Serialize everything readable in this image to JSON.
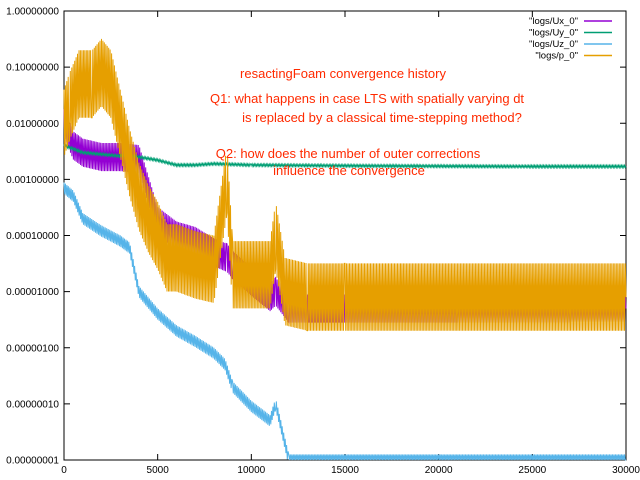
{
  "chart_data": {
    "type": "line",
    "title": "",
    "xlabel": "",
    "ylabel": "",
    "xlim": [
      0,
      30000
    ],
    "ylim": [
      1e-08,
      1
    ],
    "y_scale": "log",
    "grid": false,
    "legend_placement": "top-right",
    "x_ticks": [
      0,
      5000,
      10000,
      15000,
      20000,
      25000,
      30000
    ],
    "x_tick_labels": [
      "0",
      "5000",
      "10000",
      "15000",
      "20000",
      "25000",
      "30000"
    ],
    "y_ticks": [
      1e-08,
      1e-07,
      1e-06,
      1e-05,
      0.0001,
      0.001,
      0.01,
      0.1,
      1
    ],
    "y_tick_labels": [
      "0.00000001",
      "0.00000010",
      "0.00000100",
      "0.00001000",
      "0.00010000",
      "0.00100000",
      "0.01000000",
      "0.10000000",
      "1.00000000"
    ],
    "annotations": [
      "resactingFoam convergence history",
      "Q1: what happens in case LTS with spatially varying dt",
      "is replaced by a classical time-stepping method?",
      "Q2: how does the number of outer corrections",
      "influence the convergence"
    ],
    "series": [
      {
        "name": "\"logs/Ux_0\"",
        "color": "#9400d3",
        "x": [
          0,
          500,
          1000,
          2000,
          3000,
          4000,
          5000,
          6000,
          7000,
          8000,
          8700,
          9000,
          10000,
          11000,
          11300,
          12000,
          15000,
          20000,
          25000,
          30000
        ],
        "y": [
          0.01,
          0.004,
          0.003,
          0.0025,
          0.0025,
          0.0023,
          0.00018,
          0.0001,
          8e-05,
          5e-05,
          4e-05,
          3e-05,
          1.5e-05,
          8e-06,
          1e-05,
          5e-06,
          5e-06,
          5e-06,
          5e-06,
          5e-06
        ]
      },
      {
        "name": "\"logs/Uy_0\"",
        "color": "#009e73",
        "x": [
          0,
          500,
          1000,
          2000,
          3000,
          4000,
          5000,
          6000,
          7000,
          8000,
          10000,
          15000,
          20000,
          25000,
          30000
        ],
        "y": [
          0.004,
          0.0035,
          0.003,
          0.0028,
          0.0026,
          0.0025,
          0.0022,
          0.0018,
          0.0018,
          0.0019,
          0.0018,
          0.00175,
          0.00172,
          0.0017,
          0.0017
        ]
      },
      {
        "name": "\"logs/Uz_0\"",
        "color": "#56b4e9",
        "x": [
          0,
          500,
          1000,
          2000,
          3000,
          3500,
          4000,
          5000,
          6000,
          7000,
          8000,
          8600,
          9000,
          10000,
          11000,
          11300,
          12000,
          15000,
          20000,
          25000,
          30000
        ],
        "y": [
          0.0007,
          0.0005,
          0.0002,
          0.00012,
          8e-05,
          6e-05,
          1e-05,
          4e-06,
          2e-06,
          1.3e-06,
          8e-07,
          5e-07,
          2e-07,
          9e-08,
          5e-08,
          1e-07,
          1e-08,
          1e-08,
          1e-08,
          1e-08,
          1e-08
        ]
      },
      {
        "name": "\"logs/p_0\"",
        "color": "#e69f00",
        "x": [
          0,
          300,
          800,
          1500,
          2000,
          2500,
          3000,
          3500,
          4000,
          4500,
          5000,
          5500,
          6000,
          7000,
          8000,
          8700,
          9000,
          10000,
          11000,
          11300,
          11800,
          13000,
          15000,
          20000,
          25000,
          30000
        ],
        "y": [
          0.01,
          0.02,
          0.05,
          0.05,
          0.08,
          0.05,
          0.01,
          0.002,
          0.0005,
          0.0002,
          0.0001,
          4e-05,
          4e-05,
          3e-05,
          2.5e-05,
          0.001,
          2e-05,
          2e-05,
          2e-05,
          0.0001,
          1e-05,
          8e-06,
          8e-06,
          8e-06,
          8e-06,
          8e-06
        ]
      }
    ]
  }
}
